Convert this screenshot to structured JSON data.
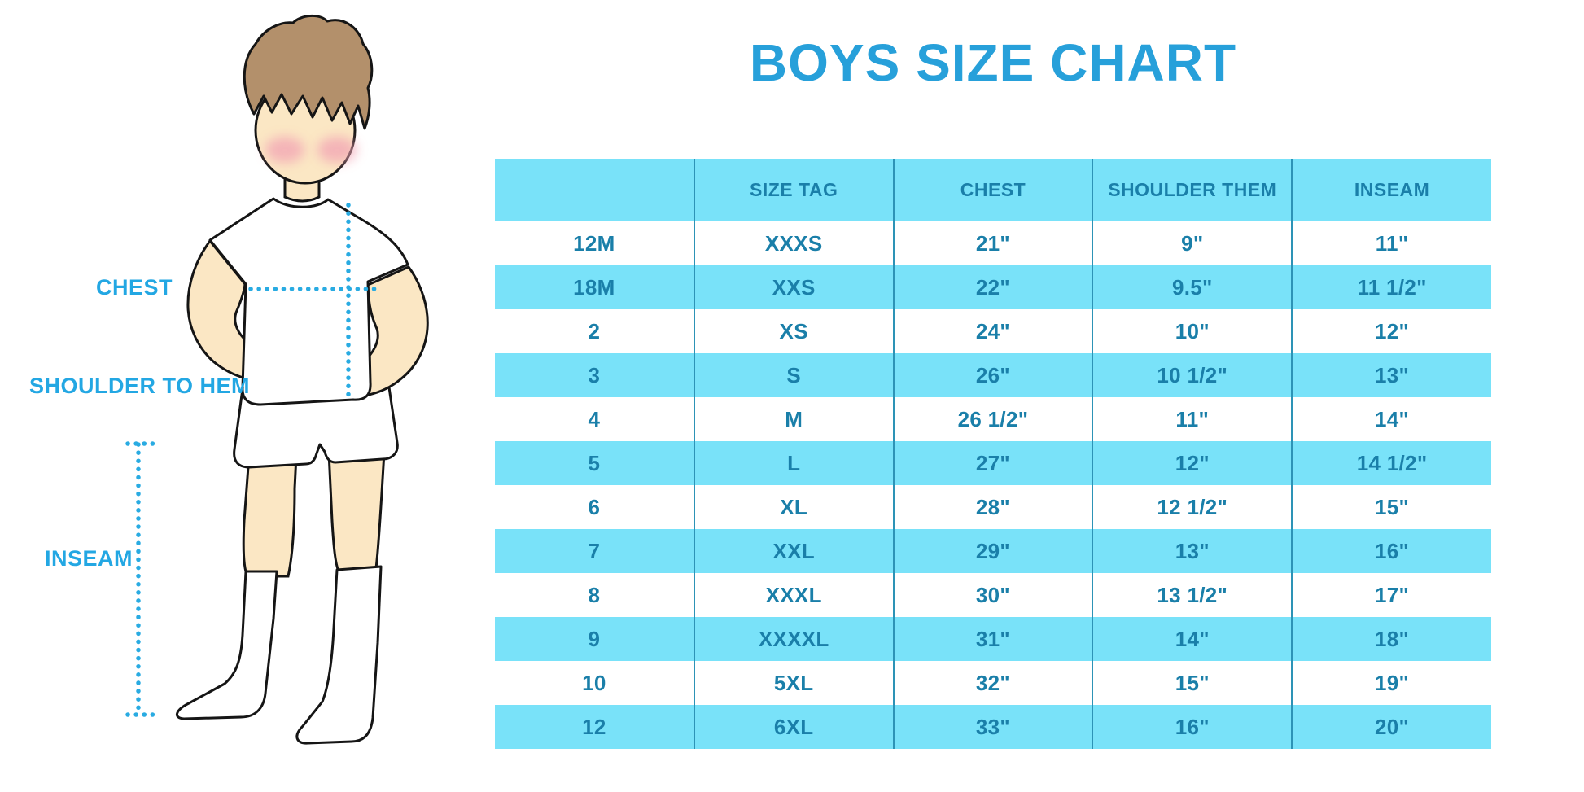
{
  "title": "BOYS SIZE CHART",
  "figure": {
    "labels": {
      "chest": "CHEST",
      "shoulder_to_hem": "SHOULDER TO HEM",
      "inseam": "INSEAM"
    }
  },
  "table": {
    "headers": [
      "",
      "SIZE TAG",
      "CHEST",
      "SHOULDER THEM",
      "INSEAM"
    ],
    "rows": [
      [
        "12M",
        "XXXS",
        "21\"",
        "9\"",
        "11\""
      ],
      [
        "18M",
        "XXS",
        "22\"",
        "9.5\"",
        "11 1/2\""
      ],
      [
        "2",
        "XS",
        "24\"",
        "10\"",
        "12\""
      ],
      [
        "3",
        "S",
        "26\"",
        "10 1/2\"",
        "13\""
      ],
      [
        "4",
        "M",
        "26 1/2\"",
        "11\"",
        "14\""
      ],
      [
        "5",
        "L",
        "27\"",
        "12\"",
        "14 1/2\""
      ],
      [
        "6",
        "XL",
        "28\"",
        "12 1/2\"",
        "15\""
      ],
      [
        "7",
        "XXL",
        "29\"",
        "13\"",
        "16\""
      ],
      [
        "8",
        "XXXL",
        "30\"",
        "13 1/2\"",
        "17\""
      ],
      [
        "9",
        "XXXXL",
        "31\"",
        "14\"",
        "18\""
      ],
      [
        "10",
        "5XL",
        "32\"",
        "15\"",
        "19\""
      ],
      [
        "12",
        "6XL",
        "33\"",
        "16\"",
        "20\""
      ]
    ]
  },
  "colors": {
    "title_blue": "#27A0DA",
    "label_blue": "#23A7E3",
    "row_blue": "#79E2F9",
    "table_text_teal": "#1A7FA9",
    "divider_teal": "#2D93B6",
    "dotted_line_blue": "#29ABE2",
    "skin": "#FBE7C4",
    "hair_brown": "#B3906B",
    "cheek_pink": "#F2A3B3"
  }
}
